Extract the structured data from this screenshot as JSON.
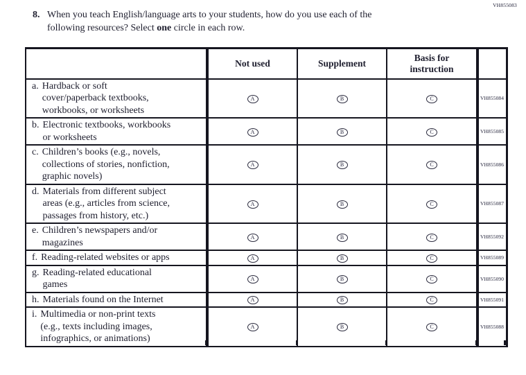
{
  "meta": {
    "form_code": "VH855083"
  },
  "question": {
    "number": "8.",
    "line1": "When you teach English/language arts to your students, how do you use each of the",
    "line2_pre": "following resources? Select ",
    "line2_bold": "one",
    "line2_post": " circle in each row."
  },
  "table": {
    "columns": [
      {
        "label": "Not used",
        "letter": "A",
        "key": "not-used"
      },
      {
        "label": "Supplement",
        "letter": "B",
        "key": "supplement"
      },
      {
        "label": [
          "Basis for",
          "instruction"
        ],
        "letter": "C",
        "key": "basis-for-instruction"
      }
    ],
    "rows": [
      {
        "letter": "a.",
        "label": [
          "Hardback or soft",
          "cover/paperback textbooks,",
          "workbooks, or worksheets"
        ],
        "code": "VH855084"
      },
      {
        "letter": "b.",
        "label": [
          "Electronic textbooks, workbooks",
          "or worksheets"
        ],
        "code": "VH855085"
      },
      {
        "letter": "c.",
        "label": [
          "Children’s books (e.g., novels,",
          "collections of stories, nonfiction,",
          "graphic novels)"
        ],
        "code": "VH855086"
      },
      {
        "letter": "d.",
        "label": [
          "Materials from different subject",
          "areas (e.g., articles from science,",
          "passages from history, etc.)"
        ],
        "code": "VH855087"
      },
      {
        "letter": "e.",
        "label": [
          "Children’s newspapers and/or",
          "magazines"
        ],
        "code": "VH855092"
      },
      {
        "letter": "f.",
        "label": [
          "Reading-related websites or apps"
        ],
        "code": "VH855089"
      },
      {
        "letter": "g.",
        "label": [
          "Reading-related educational",
          "games"
        ],
        "code": "VH855090"
      },
      {
        "letter": "h.",
        "label": [
          "Materials found on the Internet"
        ],
        "code": "VH855091"
      },
      {
        "letter": "i.",
        "label": [
          "Multimedia or non-print texts",
          "(e.g., texts including images,",
          "infographics, or animations)"
        ],
        "code": "VH855088"
      }
    ]
  }
}
